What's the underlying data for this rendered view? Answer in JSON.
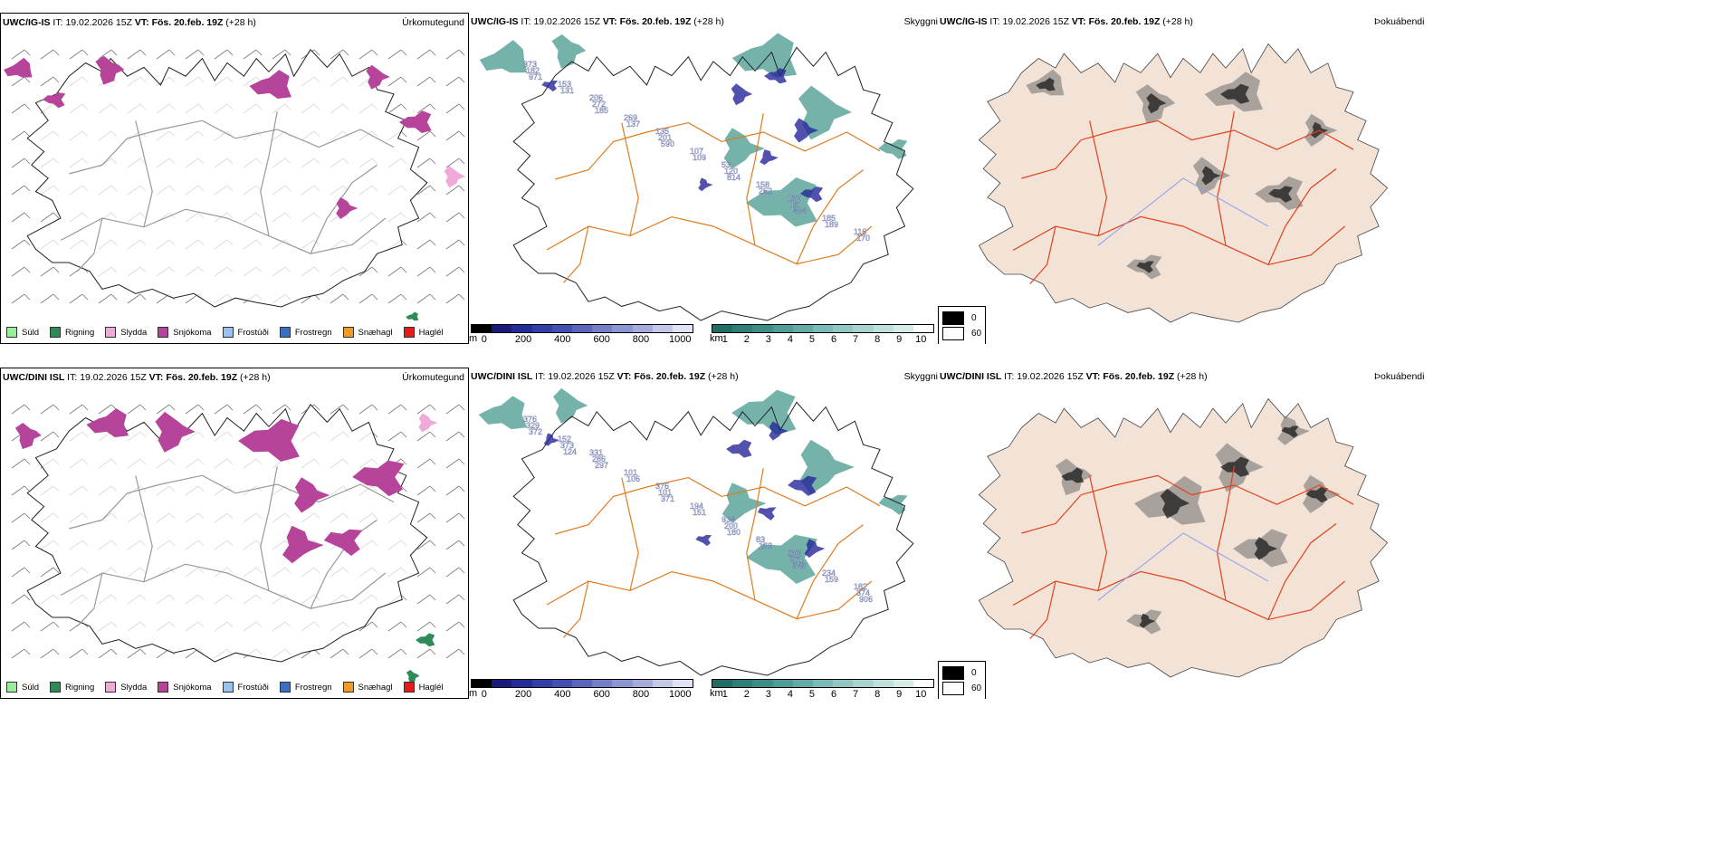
{
  "rows": [
    {
      "model": "UWC/IG-IS",
      "precip": {
        "it_label": "IT:",
        "it_value": "19.02.2026 15Z",
        "vt_label": "VT:",
        "vt_value": "Fös. 20.feb. 19Z",
        "lead": "(+28 h)",
        "title": "Úrkomutegund"
      },
      "cloud": {
        "it_label": "IT:",
        "it_value": "19.02.2026 15Z",
        "vt_label": "VT:",
        "vt_value": "Fös. 20.feb. 19Z",
        "lead": "(+28 h)",
        "title": "Skyggni"
      },
      "fog": {
        "it_label": "IT:",
        "it_value": "19.02.2026 15Z",
        "vt_label": "VT:",
        "vt_value": "Fös. 20.feb. 19Z",
        "lead": "(+28 h)",
        "title": "Þokuábendi"
      },
      "visibility_labels": [
        "373",
        "206",
        "135",
        "53",
        "180",
        "116",
        "153",
        "269",
        "107",
        "158",
        "185",
        "182",
        "272",
        "201",
        "120",
        "15",
        "170",
        "131",
        "137",
        "109",
        "262",
        "189",
        "971",
        "185",
        "590",
        "814",
        "484"
      ]
    },
    {
      "model": "UWC/DINI ISL",
      "precip": {
        "it_label": "IT:",
        "it_value": "19.02.2026 15Z",
        "vt_label": "VT:",
        "vt_value": "Fös. 20.feb. 19Z",
        "lead": "(+28 h)",
        "title": "Úrkomutegund"
      },
      "cloud": {
        "it_label": "IT:",
        "it_value": "19.02.2026 15Z",
        "vt_label": "VT:",
        "vt_value": "Fös. 20.feb. 19Z",
        "lead": "(+28 h)",
        "title": "Skyggni"
      },
      "fog": {
        "it_label": "IT:",
        "it_value": "19.02.2026 15Z",
        "vt_label": "VT:",
        "vt_value": "Fös. 20.feb. 19Z",
        "lead": "(+28 h)",
        "title": "Þokuábendi"
      },
      "visibility_labels": [
        "376",
        "331",
        "376",
        "934",
        "283",
        "182",
        "152",
        "101",
        "194",
        "83",
        "234",
        "329",
        "286",
        "101",
        "200",
        "271",
        "374",
        "373",
        "106",
        "151",
        "153",
        "159",
        "372",
        "297",
        "371",
        "180",
        "545",
        "906",
        "124"
      ]
    }
  ],
  "precip_legend": [
    {
      "label": "Súld",
      "color": "#99ee99"
    },
    {
      "label": "Rigning",
      "color": "#2e8b57"
    },
    {
      "label": "Slydda",
      "color": "#f0aad8"
    },
    {
      "label": "Snjókoma",
      "color": "#b5449a"
    },
    {
      "label": "Frostúði",
      "color": "#99c2f0"
    },
    {
      "label": "Frostregn",
      "color": "#3a6fc4"
    },
    {
      "label": "Snæhagl",
      "color": "#f09c2a"
    },
    {
      "label": "Haglél",
      "color": "#e41b1b"
    }
  ],
  "base_scale": {
    "unit": "m",
    "ticks": [
      "0",
      "200",
      "400",
      "600",
      "800",
      "1000"
    ],
    "colors": [
      "#000000",
      "#1a1a7a",
      "#232d99",
      "#3140a8",
      "#4250b2",
      "#5a66bc",
      "#7380c8",
      "#8c96d2",
      "#a5acdc",
      "#c3c8e8",
      "#e0e3f4"
    ]
  },
  "vis_scale": {
    "unit": "km",
    "ticks": [
      "1",
      "2",
      "3",
      "4",
      "5",
      "6",
      "7",
      "8",
      "9",
      "10"
    ],
    "colors": [
      "#1f6e66",
      "#2e7f77",
      "#3d8f86",
      "#4f9d94",
      "#64aca3",
      "#7ababb",
      "#91c7c3",
      "#a8d4cf",
      "#bfe0dc",
      "#d6ece9",
      "#ffffff"
    ]
  },
  "fog_scale": [
    {
      "label": "0",
      "color": "#000000"
    },
    {
      "label": "60",
      "color": "#ffffff"
    }
  ],
  "colors": {
    "snow": "#b5449a",
    "sleet": "#f0aad8",
    "rain": "#2e8b57",
    "road": "#e07b1e",
    "road_red": "#e0421e",
    "land": "#f3e2d6",
    "teal": "#3a9184",
    "blue": "#27279a",
    "river": "#8c9ef0"
  }
}
